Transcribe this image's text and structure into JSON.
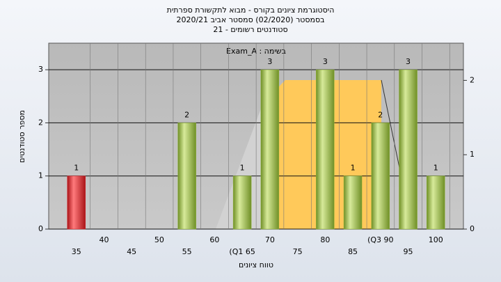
{
  "chart_data": {
    "type": "bar",
    "title": "היסטוגרמת ציונים בקורס - מבוא לתקשורת ספרתית",
    "subtitle": "בסמסטר (02/2020) סמסטר אביב 2020/21",
    "subtitle2": "סטודנטים רשומים - 21",
    "annotation": "Exam_A : בשימה",
    "x_label": "טווח ציונים",
    "y_label": "מספר סטודנטים",
    "x": [
      35,
      40,
      45,
      50,
      55,
      60,
      65,
      70,
      75,
      80,
      85,
      90,
      95,
      100
    ],
    "values": [
      1,
      0,
      0,
      0,
      2,
      0,
      1,
      3,
      0,
      3,
      1,
      2,
      3,
      1
    ],
    "colors": [
      "#d8262b",
      "#8fb43a",
      "#8fb43a",
      "#8fb43a",
      "#8fb43a",
      "#8fb43a",
      "#8fb43a",
      "#8fb43a",
      "#8fb43a",
      "#8fb43a",
      "#8fb43a",
      "#8fb43a",
      "#8fb43a",
      "#8fb43a"
    ],
    "xlim": [
      30,
      105
    ],
    "xticks": [
      35,
      40,
      45,
      50,
      55,
      60,
      {
        "value": 65,
        "label": "(Q1 65"
      },
      70,
      75,
      80,
      85,
      {
        "value": 90,
        "label": "(Q3 90"
      },
      95,
      100
    ],
    "ylim": [
      0,
      3.5
    ],
    "yticks": [
      0,
      1,
      2,
      3
    ],
    "y2lim": [
      0,
      2.5
    ],
    "y2ticks": [
      0,
      1,
      2
    ],
    "grid": true
  }
}
